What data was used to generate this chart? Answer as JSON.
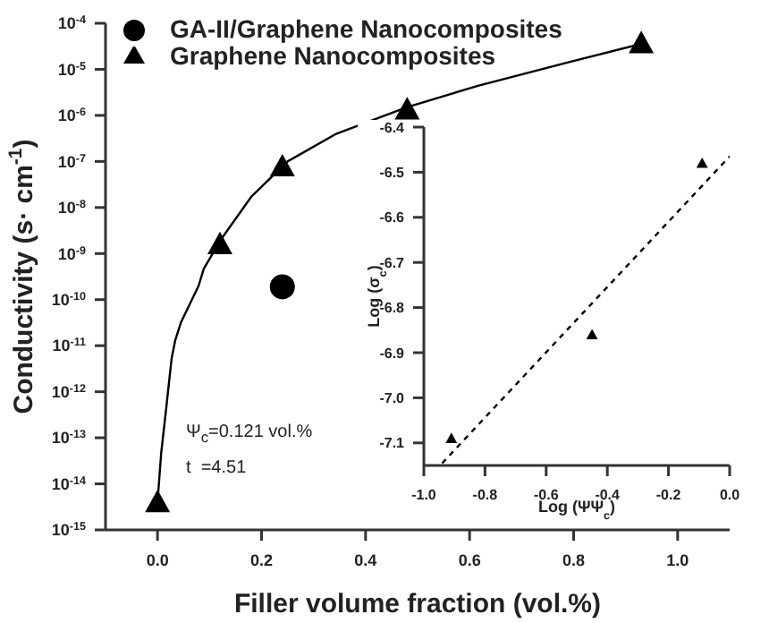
{
  "chart_data": [
    {
      "type": "scatter",
      "xlabel": "Filler volume fraction (vol.%)",
      "ylabel": "Conductivity (s· cm$^{-1}$)",
      "log": "y",
      "legend": "top left",
      "xlim": [
        -0.1,
        1.1
      ],
      "xticks": [
        {
          "value": 0,
          "label": "0.0"
        },
        0.2,
        0.4,
        0.6,
        0.8,
        {
          "value": 1,
          "label": "1.0"
        }
      ],
      "ylim": [
        1e-15,
        0.0001
      ],
      "yticks": [
        {
          "value": 1e-15,
          "label": "10$^{-15}$"
        },
        {
          "value": 1e-14,
          "label": "10$^{-14}$"
        },
        {
          "value": 1e-13,
          "label": "10$^{-13}$"
        },
        {
          "value": 1e-12,
          "label": "10$^{-12}$"
        },
        {
          "value": 1e-11,
          "label": "10$^{-11}$"
        },
        {
          "value": 1e-10,
          "label": "10$^{-10}$"
        },
        {
          "value": 1e-09,
          "label": "10$^{-9}$"
        },
        {
          "value": 1e-08,
          "label": "10$^{-8}$"
        },
        {
          "value": 1e-07,
          "label": "10$^{-7}$"
        },
        {
          "value": 1e-06,
          "label": "10$^{-6}$"
        },
        {
          "value": 1e-05,
          "label": "10$^{-5}$"
        },
        {
          "value": 0.0001,
          "label": "10$^{-4}$"
        }
      ],
      "annotations": [
        "Ψ$_{c}$=0.121 vol.%",
        "t  =4.51"
      ],
      "series": [
        {
          "name": "GA-II/Graphene Nanocomposites",
          "type": "scatter",
          "marker": "circle",
          "color": "#000000",
          "x": [
            0.24
          ],
          "values": [
            1.9e-10
          ]
        },
        {
          "name": "Graphene Nanocomposites",
          "type": "scatter",
          "marker": "triangle",
          "color": "#000000",
          "x": [
            0,
            0.12,
            0.24,
            0.48,
            0.93
          ],
          "values": [
            4e-15,
            1.6e-09,
            7.8e-08,
            1.35e-06,
            3.7e-05
          ]
        },
        {
          "type": "line",
          "marker": "none",
          "line_style": "solid",
          "color": "#000000",
          "x": [
            0,
            0.007,
            0.017,
            0.027,
            0.034,
            0.045,
            0.079,
            0.089,
            0.123,
            0.18,
            0.25,
            0.342,
            0.479,
            0.616,
            0.788,
            0.935
          ],
          "values": [
            4e-15,
            4.6e-14,
            4.7e-13,
            5.2e-12,
            1.3e-11,
            3.2e-11,
            2e-10,
            4.7e-10,
            2.1e-09,
            1.7e-08,
            1e-07,
            3.9e-07,
            1.5e-06,
            4.4e-06,
            1.4e-05,
            3.7e-05
          ]
        }
      ]
    },
    {
      "type": "scatter",
      "xlabel": "Log (ΨΨ$_{c}$)",
      "ylabel": "Log (σ$_{c}$)",
      "xlim": [
        -1.0,
        0.0
      ],
      "xticks": [
        {
          "value": -1,
          "label": "-1.0"
        },
        -0.8,
        -0.6,
        -0.4,
        -0.2,
        {
          "value": 0,
          "label": "0.0"
        }
      ],
      "ylim": [
        -7.15,
        -6.4
      ],
      "yticks": [
        -7.1,
        {
          "value": -7,
          "label": "-7.0"
        },
        -6.9,
        -6.8,
        -6.7,
        -6.6,
        -6.5,
        -6.4
      ],
      "series": [
        {
          "type": "scatter",
          "marker": "triangle",
          "color": "#000000",
          "x": [
            -0.91,
            -0.45,
            -0.09
          ],
          "values": [
            -7.09,
            -6.86,
            -6.48
          ]
        },
        {
          "type": "line",
          "marker": "none",
          "line_style": "dashed",
          "color": "#000000",
          "x": [
            -0.94,
            0.0
          ],
          "values": [
            -7.145,
            -6.465
          ]
        }
      ]
    }
  ]
}
